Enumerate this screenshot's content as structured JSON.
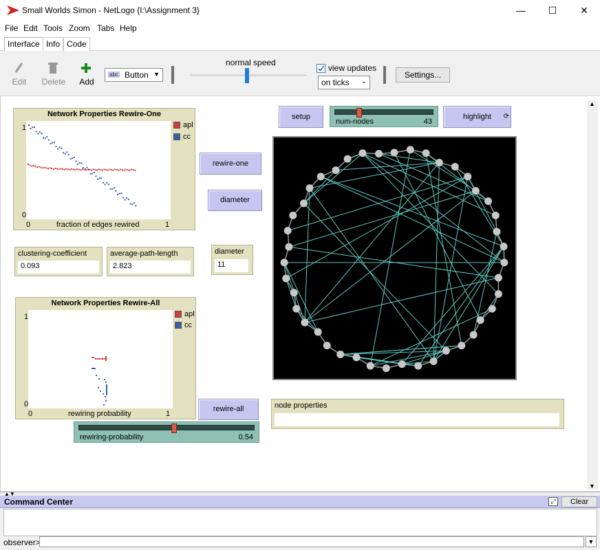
{
  "window": {
    "title": "Small Worlds Simon - NetLogo {I:\\Assignment 3}",
    "minimize": "—",
    "maximize": "☐",
    "close": "✕"
  },
  "menu": [
    "File",
    "Edit",
    "Tools",
    "Zoom",
    "Tabs",
    "Help"
  ],
  "tabs": [
    "Interface",
    "Info",
    "Code"
  ],
  "toolbar": {
    "edit": "Edit",
    "delete": "Delete",
    "add": "Add",
    "widget_type": "Button",
    "speed_label": "normal speed",
    "view_updates_label": "view updates",
    "view_updates_checked": true,
    "update_mode": "on ticks",
    "settings": "Settings..."
  },
  "plot1": {
    "title": "Network Properties Rewire-One",
    "y_max": "1",
    "y_min": "0",
    "x_min": "0",
    "x_max": "1",
    "xlabel": "fraction of edges rewired",
    "legend": [
      {
        "name": "apl",
        "color": "#d23c3c"
      },
      {
        "name": "cc",
        "color": "#3a5fa8"
      }
    ]
  },
  "plot2": {
    "title": "Network Properties Rewire-All",
    "y_max": "1",
    "y_min": "0",
    "x_min": "0",
    "x_max": "1",
    "xlabel": "rewiring probability",
    "legend": [
      {
        "name": "apl",
        "color": "#d23c3c"
      },
      {
        "name": "cc",
        "color": "#3a5fa8"
      }
    ]
  },
  "buttons": {
    "setup": "setup",
    "highlight": "highlight",
    "rewire_one": "rewire-one",
    "diameter": "diameter",
    "rewire_all": "rewire-all"
  },
  "sliders": {
    "num_nodes": {
      "label": "num-nodes",
      "value": "43",
      "fraction": 0.23
    },
    "rewiring_probability": {
      "label": "rewiring-probability",
      "value": "0.54",
      "fraction": 0.54
    }
  },
  "monitors": {
    "clustering": {
      "label": "clustering-coefficient",
      "value": "0.093"
    },
    "apl": {
      "label": "average-path-length",
      "value": "2.823"
    },
    "diameter": {
      "label": "diameter",
      "value": "11"
    }
  },
  "node_properties": {
    "label": "node properties",
    "value": ""
  },
  "view": {
    "node_count": 43,
    "link_color": "#5fc9c3",
    "node_color": "#c8c8c8"
  },
  "command_center": {
    "title": "Command Center",
    "clear": "Clear",
    "prompt": "observer>"
  }
}
